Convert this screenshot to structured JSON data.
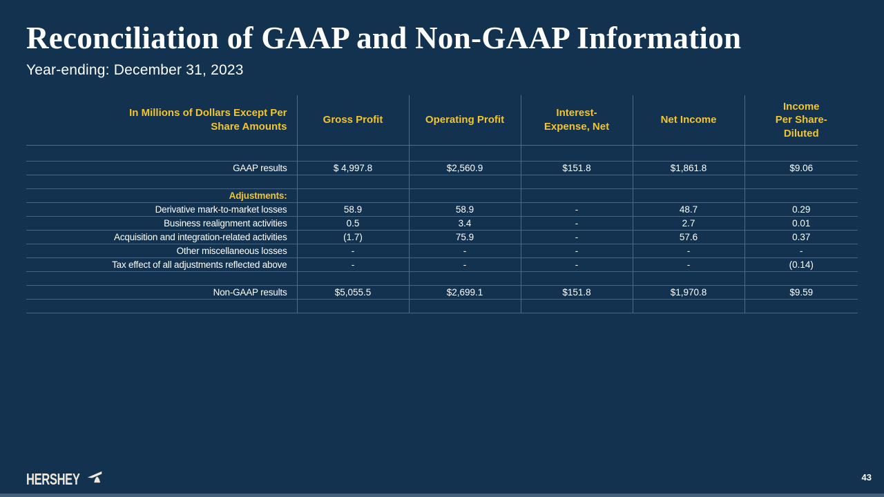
{
  "slide": {
    "title": "Reconciliation of GAAP and Non-GAAP Information",
    "subtitle": "Year-ending: December 31, 2023",
    "page_number": "43",
    "logo_text": "HERSHEY"
  },
  "colors": {
    "background": "#12324F",
    "gold_accent": "#F3C42F",
    "text_white": "#FFFFFF",
    "grid_line": "rgba(130,168,205,0.5)",
    "logo_cream": "#F0E8DA",
    "footer_bar": "#47607A"
  },
  "table": {
    "columns": [
      "In Millions of Dollars Except Per\nShare Amounts",
      "Gross Profit",
      "Operating Profit",
      "Interest-\nExpense, Net",
      "Net Income",
      "Income\nPer Share-\nDiluted"
    ],
    "rows": [
      {
        "type": "spacer",
        "label": "",
        "values": [
          "",
          "",
          "",
          "",
          ""
        ]
      },
      {
        "type": "data",
        "label": "GAAP results",
        "values": [
          "$ 4,997.8",
          "$2,560.9",
          "$151.8",
          "$1,861.8",
          "$9.06"
        ]
      },
      {
        "type": "spacer",
        "label": "",
        "values": [
          "",
          "",
          "",
          "",
          ""
        ]
      },
      {
        "type": "section",
        "label": "Adjustments:",
        "values": [
          "",
          "",
          "",
          "",
          ""
        ]
      },
      {
        "type": "data",
        "label": "Derivative mark-to-market losses",
        "values": [
          "58.9",
          "58.9",
          "-",
          "48.7",
          "0.29"
        ]
      },
      {
        "type": "data",
        "label": "Business realignment activities",
        "values": [
          "0.5",
          "3.4",
          "-",
          "2.7",
          "0.01"
        ]
      },
      {
        "type": "data",
        "label": "Acquisition and integration-related activities",
        "values": [
          "(1.7)",
          "75.9",
          "-",
          "57.6",
          "0.37"
        ]
      },
      {
        "type": "data",
        "label": "Other miscellaneous losses",
        "values": [
          "-",
          "-",
          "-",
          "-",
          "-"
        ]
      },
      {
        "type": "data",
        "label": "Tax effect of all adjustments reflected above",
        "values": [
          "-",
          "-",
          "-",
          "-",
          "(0.14)"
        ]
      },
      {
        "type": "spacer",
        "label": "",
        "values": [
          "",
          "",
          "",
          "",
          ""
        ]
      },
      {
        "type": "data",
        "label": "Non-GAAP results",
        "values": [
          "$5,055.5",
          "$2,699.1",
          "$151.8",
          "$1,970.8",
          "$9.59"
        ]
      },
      {
        "type": "spacer",
        "label": "",
        "values": [
          "",
          "",
          "",
          "",
          ""
        ]
      }
    ]
  }
}
